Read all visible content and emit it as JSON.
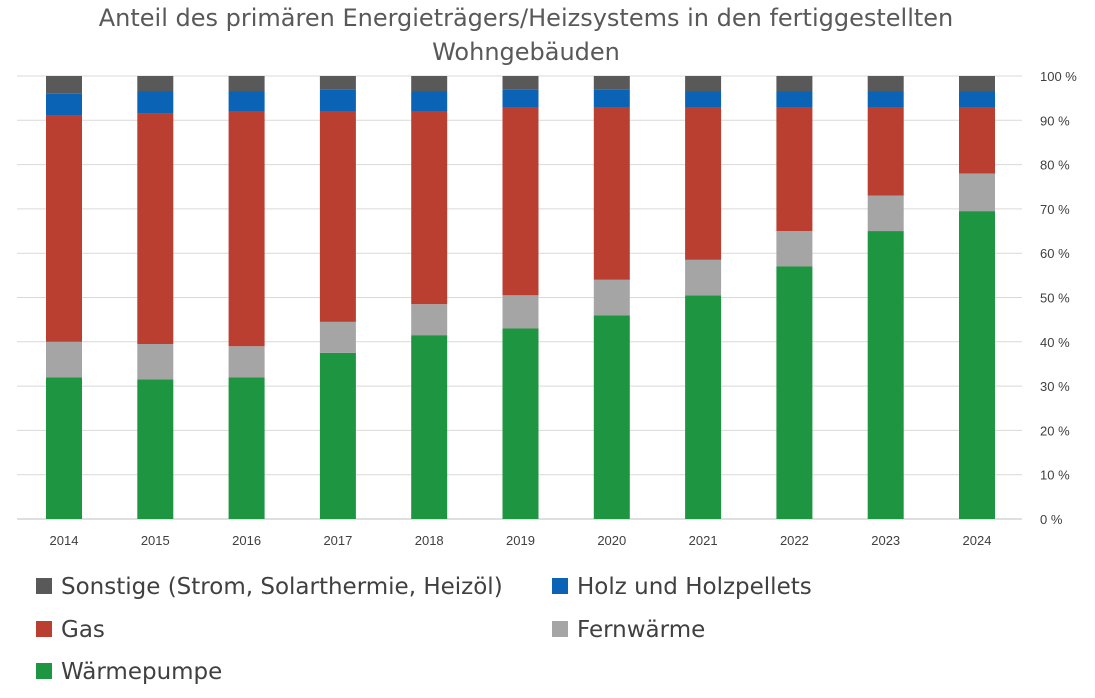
{
  "chart_data": {
    "type": "bar",
    "stacked": true,
    "title_lines": [
      "Anteil des primären Energieträgers/Heizsystems in den fertiggestellten",
      "Wohngebäuden"
    ],
    "categories": [
      "2014",
      "2015",
      "2016",
      "2017",
      "2018",
      "2019",
      "2020",
      "2021",
      "2022",
      "2023",
      "2024"
    ],
    "y_axis": {
      "position": "right",
      "ylim": [
        0,
        100
      ],
      "ticks": [
        0,
        10,
        20,
        30,
        40,
        50,
        60,
        70,
        80,
        90,
        100
      ],
      "tick_labels": [
        "0 %",
        "10 %",
        "20 %",
        "30 %",
        "40 %",
        "50 %",
        "60 %",
        "70 %",
        "80 %",
        "90 %",
        "100 %"
      ],
      "grid": true
    },
    "series": [
      {
        "key": "waermepumpe",
        "name": "Wärmepumpe",
        "color": "#1e9641",
        "values": [
          32,
          31.5,
          32,
          37.5,
          41.5,
          43,
          46,
          50.5,
          57,
          65,
          69.5
        ]
      },
      {
        "key": "fernwaerme",
        "name": "Fernwärme",
        "color": "#a5a5a5",
        "values": [
          8,
          8,
          7,
          7,
          7,
          7.5,
          8,
          8,
          8,
          8,
          8.5
        ]
      },
      {
        "key": "gas",
        "name": "Gas",
        "color": "#bb3f30",
        "values": [
          51,
          52,
          53,
          47.5,
          43.5,
          42.5,
          39,
          34.5,
          28,
          20,
          15
        ]
      },
      {
        "key": "holz",
        "name": "Holz und Holzpellets",
        "color": "#0b63b5",
        "values": [
          5,
          5,
          4.5,
          5,
          4.5,
          4,
          4,
          3.5,
          3.5,
          3.5,
          3.5
        ]
      },
      {
        "key": "sonstige",
        "name": "Sonstige (Strom, Solarthermie, Heizöl)",
        "color": "#595959",
        "values": [
          4,
          3.5,
          3.5,
          3,
          3.5,
          3,
          3,
          3.5,
          3.5,
          3.5,
          3.5
        ]
      }
    ],
    "legend": {
      "placement": "bottom",
      "order": [
        "sonstige",
        "holz",
        "gas",
        "fernwaerme",
        "waermepumpe"
      ]
    }
  }
}
